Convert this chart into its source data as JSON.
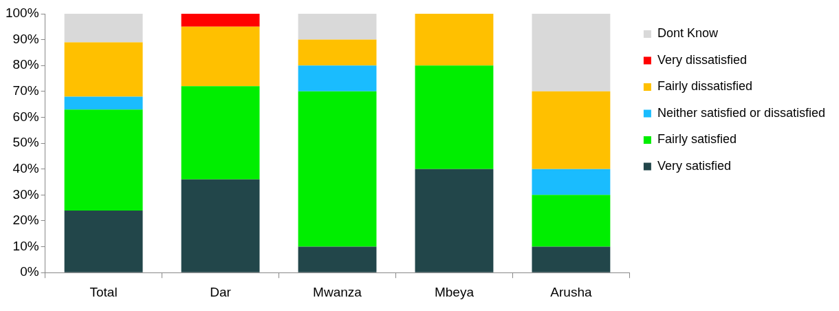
{
  "chart_data": {
    "type": "bar",
    "stacked": true,
    "categories": [
      "Total",
      "Dar",
      "Mwanza",
      "Mbeya",
      "Arusha"
    ],
    "series": [
      {
        "name": "Very satisfied",
        "color": "#22464a",
        "values": [
          24,
          36,
          10,
          40,
          10
        ]
      },
      {
        "name": "Fairly satisfied",
        "color": "#00ee00",
        "values": [
          39,
          36,
          60,
          40,
          20
        ]
      },
      {
        "name": "Neither satisfied or dissatisfied",
        "color": "#1abcfe",
        "values": [
          5,
          0,
          10,
          0,
          10
        ]
      },
      {
        "name": "Fairly dissatisfied",
        "color": "#ffc000",
        "values": [
          21,
          23,
          10,
          20,
          30
        ]
      },
      {
        "name": "Very dissatisfied",
        "color": "#ff0000",
        "values": [
          0,
          5,
          0,
          0,
          0
        ]
      },
      {
        "name": "Dont Know",
        "color": "#d9d9d9",
        "values": [
          11,
          0,
          10,
          0,
          30
        ]
      }
    ],
    "ylim": [
      0,
      100
    ],
    "yticks": [
      {
        "value": 0,
        "label": "0%"
      },
      {
        "value": 10,
        "label": "10%"
      },
      {
        "value": 20,
        "label": "20%"
      },
      {
        "value": 30,
        "label": "30%"
      },
      {
        "value": 40,
        "label": "40%"
      },
      {
        "value": 50,
        "label": "50%"
      },
      {
        "value": 60,
        "label": "60%"
      },
      {
        "value": 70,
        "label": "70%"
      },
      {
        "value": 80,
        "label": "80%"
      },
      {
        "value": 90,
        "label": "90%"
      },
      {
        "value": 100,
        "label": "100%"
      }
    ],
    "grid": false,
    "legend": "right"
  }
}
